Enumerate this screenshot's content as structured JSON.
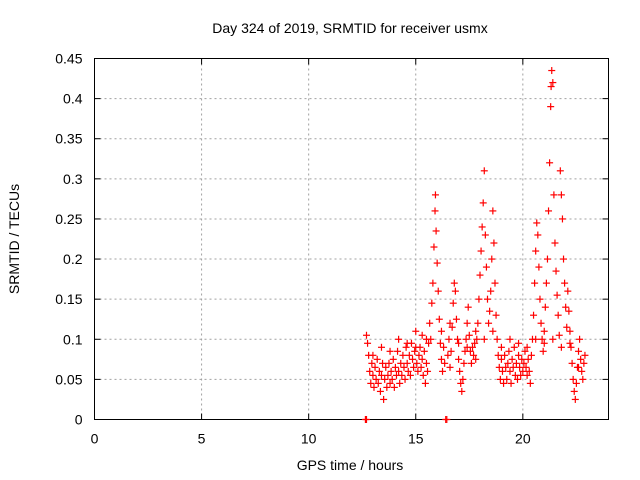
{
  "chart_data": {
    "type": "scatter",
    "title": "Day 324 of 2019, SRMTID for receiver usmx",
    "xlabel": "GPS time / hours",
    "ylabel": "SRMTID / TECUs",
    "xlim": [
      0,
      24
    ],
    "ylim": [
      0,
      0.45
    ],
    "xticks": [
      0,
      5,
      10,
      15,
      20
    ],
    "xtick_labels": [
      "0",
      "5",
      "10",
      "15",
      "20"
    ],
    "yticks": [
      0,
      0.05,
      0.1,
      0.15,
      0.2,
      0.25,
      0.3,
      0.35,
      0.4,
      0.45
    ],
    "ytick_labels": [
      "0",
      "0.05",
      "0.1",
      "0.15",
      "0.2",
      "0.25",
      "0.3",
      "0.35",
      "0.4",
      "0.45"
    ],
    "grid": true,
    "marker": "+",
    "color": "#ff0000",
    "series": [
      {
        "name": "SRMTID",
        "points": [
          [
            12.65,
            0.0
          ],
          [
            12.7,
            0.0
          ],
          [
            16.4,
            0.0
          ],
          [
            16.45,
            0.0
          ],
          [
            12.7,
            0.105
          ],
          [
            12.75,
            0.095
          ],
          [
            12.8,
            0.08
          ],
          [
            12.85,
            0.06
          ],
          [
            12.9,
            0.045
          ],
          [
            12.95,
            0.07
          ],
          [
            13.0,
            0.055
          ],
          [
            13.05,
            0.04
          ],
          [
            13.1,
            0.065
          ],
          [
            13.15,
            0.05
          ],
          [
            13.2,
            0.075
          ],
          [
            13.25,
            0.045
          ],
          [
            13.3,
            0.06
          ],
          [
            13.35,
            0.035
          ],
          [
            13.4,
            0.055
          ],
          [
            13.45,
            0.07
          ],
          [
            13.5,
            0.025
          ],
          [
            13.55,
            0.05
          ],
          [
            13.6,
            0.065
          ],
          [
            13.65,
            0.04
          ],
          [
            13.7,
            0.055
          ],
          [
            13.75,
            0.07
          ],
          [
            13.8,
            0.045
          ],
          [
            13.85,
            0.06
          ],
          [
            13.9,
            0.05
          ],
          [
            13.95,
            0.075
          ],
          [
            14.0,
            0.04
          ],
          [
            14.05,
            0.065
          ],
          [
            14.1,
            0.055
          ],
          [
            14.15,
            0.085
          ],
          [
            14.2,
            0.06
          ],
          [
            14.25,
            0.045
          ],
          [
            14.3,
            0.07
          ],
          [
            14.35,
            0.055
          ],
          [
            14.4,
            0.08
          ],
          [
            14.45,
            0.065
          ],
          [
            14.5,
            0.05
          ],
          [
            14.55,
            0.09
          ],
          [
            14.6,
            0.07
          ],
          [
            14.65,
            0.06
          ],
          [
            14.7,
            0.08
          ],
          [
            14.75,
            0.055
          ],
          [
            14.8,
            0.095
          ],
          [
            14.85,
            0.075
          ],
          [
            14.9,
            0.065
          ],
          [
            14.95,
            0.085
          ],
          [
            15.0,
            0.11
          ],
          [
            15.05,
            0.07
          ],
          [
            15.1,
            0.06
          ],
          [
            15.15,
            0.08
          ],
          [
            15.2,
            0.09
          ],
          [
            15.25,
            0.065
          ],
          [
            15.3,
            0.075
          ],
          [
            15.35,
            0.055
          ],
          [
            15.4,
            0.085
          ],
          [
            15.45,
            0.045
          ],
          [
            15.5,
            0.07
          ],
          [
            15.55,
            0.06
          ],
          [
            15.6,
            0.095
          ],
          [
            15.65,
            0.12
          ],
          [
            15.7,
            0.1
          ],
          [
            15.75,
            0.145
          ],
          [
            15.8,
            0.17
          ],
          [
            15.85,
            0.215
          ],
          [
            15.9,
            0.26
          ],
          [
            15.92,
            0.28
          ],
          [
            15.95,
            0.235
          ],
          [
            16.0,
            0.195
          ],
          [
            16.05,
            0.16
          ],
          [
            16.1,
            0.125
          ],
          [
            16.15,
            0.095
          ],
          [
            16.2,
            0.075
          ],
          [
            16.25,
            0.06
          ],
          [
            16.3,
            0.09
          ],
          [
            16.35,
            0.07
          ],
          [
            16.5,
            0.08
          ],
          [
            16.55,
            0.1
          ],
          [
            16.6,
            0.065
          ],
          [
            16.65,
            0.085
          ],
          [
            16.7,
            0.115
          ],
          [
            16.75,
            0.145
          ],
          [
            16.8,
            0.17
          ],
          [
            16.85,
            0.16
          ],
          [
            16.9,
            0.125
          ],
          [
            16.95,
            0.1
          ],
          [
            17.0,
            0.075
          ],
          [
            17.05,
            0.06
          ],
          [
            17.1,
            0.045
          ],
          [
            17.15,
            0.035
          ],
          [
            17.2,
            0.05
          ],
          [
            17.25,
            0.07
          ],
          [
            17.3,
            0.085
          ],
          [
            17.35,
            0.1
          ],
          [
            17.4,
            0.12
          ],
          [
            17.45,
            0.14
          ],
          [
            17.5,
            0.105
          ],
          [
            17.55,
            0.085
          ],
          [
            17.6,
            0.07
          ],
          [
            17.65,
            0.09
          ],
          [
            17.7,
            0.08
          ],
          [
            17.75,
            0.095
          ],
          [
            17.8,
            0.075
          ],
          [
            17.85,
            0.1
          ],
          [
            17.9,
            0.12
          ],
          [
            17.95,
            0.15
          ],
          [
            18.0,
            0.18
          ],
          [
            18.05,
            0.21
          ],
          [
            18.1,
            0.24
          ],
          [
            18.15,
            0.27
          ],
          [
            18.2,
            0.31
          ],
          [
            18.25,
            0.23
          ],
          [
            18.3,
            0.19
          ],
          [
            18.35,
            0.15
          ],
          [
            18.4,
            0.12
          ],
          [
            18.45,
            0.135
          ],
          [
            18.5,
            0.16
          ],
          [
            18.55,
            0.2
          ],
          [
            18.6,
            0.26
          ],
          [
            18.65,
            0.22
          ],
          [
            18.7,
            0.17
          ],
          [
            18.75,
            0.13
          ],
          [
            18.8,
            0.1
          ],
          [
            18.85,
            0.08
          ],
          [
            18.9,
            0.065
          ],
          [
            18.95,
            0.05
          ],
          [
            19.0,
            0.075
          ],
          [
            19.05,
            0.06
          ],
          [
            19.1,
            0.045
          ],
          [
            19.15,
            0.08
          ],
          [
            19.2,
            0.065
          ],
          [
            19.25,
            0.05
          ],
          [
            19.3,
            0.07
          ],
          [
            19.35,
            0.085
          ],
          [
            19.4,
            0.06
          ],
          [
            19.45,
            0.045
          ],
          [
            19.5,
            0.075
          ],
          [
            19.55,
            0.065
          ],
          [
            19.6,
            0.09
          ],
          [
            19.65,
            0.055
          ],
          [
            19.7,
            0.07
          ],
          [
            19.75,
            0.05
          ],
          [
            19.8,
            0.08
          ],
          [
            19.85,
            0.065
          ],
          [
            19.9,
            0.055
          ],
          [
            19.95,
            0.075
          ],
          [
            20.0,
            0.06
          ],
          [
            20.05,
            0.07
          ],
          [
            20.1,
            0.085
          ],
          [
            20.15,
            0.065
          ],
          [
            20.2,
            0.055
          ],
          [
            20.25,
            0.075
          ],
          [
            20.3,
            0.06
          ],
          [
            20.35,
            0.045
          ],
          [
            20.4,
            0.08
          ],
          [
            20.45,
            0.1
          ],
          [
            20.5,
            0.13
          ],
          [
            20.55,
            0.17
          ],
          [
            20.6,
            0.21
          ],
          [
            20.65,
            0.245
          ],
          [
            20.7,
            0.23
          ],
          [
            20.75,
            0.19
          ],
          [
            20.8,
            0.15
          ],
          [
            20.85,
            0.12
          ],
          [
            20.9,
            0.1
          ],
          [
            20.95,
            0.085
          ],
          [
            21.0,
            0.11
          ],
          [
            21.05,
            0.14
          ],
          [
            21.1,
            0.17
          ],
          [
            21.15,
            0.2
          ],
          [
            21.2,
            0.26
          ],
          [
            21.25,
            0.32
          ],
          [
            21.3,
            0.39
          ],
          [
            21.32,
            0.415
          ],
          [
            21.35,
            0.435
          ],
          [
            21.4,
            0.42
          ],
          [
            21.45,
            0.28
          ],
          [
            21.5,
            0.22
          ],
          [
            21.55,
            0.185
          ],
          [
            21.6,
            0.155
          ],
          [
            21.65,
            0.13
          ],
          [
            21.7,
            0.105
          ],
          [
            21.75,
            0.31
          ],
          [
            21.8,
            0.28
          ],
          [
            21.85,
            0.25
          ],
          [
            21.9,
            0.2
          ],
          [
            21.95,
            0.17
          ],
          [
            22.0,
            0.14
          ],
          [
            22.05,
            0.115
          ],
          [
            22.1,
            0.16
          ],
          [
            22.15,
            0.135
          ],
          [
            22.2,
            0.11
          ],
          [
            22.25,
            0.09
          ],
          [
            22.3,
            0.07
          ],
          [
            22.35,
            0.05
          ],
          [
            22.4,
            0.035
          ],
          [
            22.45,
            0.025
          ],
          [
            22.5,
            0.045
          ],
          [
            22.55,
            0.065
          ],
          [
            22.6,
            0.085
          ],
          [
            22.65,
            0.1
          ],
          [
            22.7,
            0.075
          ],
          [
            22.75,
            0.06
          ],
          [
            22.8,
            0.05
          ],
          [
            22.85,
            0.07
          ],
          [
            13.0,
            0.08
          ],
          [
            13.4,
            0.09
          ],
          [
            13.8,
            0.085
          ],
          [
            14.2,
            0.1
          ],
          [
            14.6,
            0.095
          ],
          [
            15.0,
            0.09
          ],
          [
            15.3,
            0.105
          ],
          [
            15.5,
            0.1
          ],
          [
            16.2,
            0.11
          ],
          [
            16.6,
            0.12
          ],
          [
            17.0,
            0.095
          ],
          [
            17.4,
            0.09
          ],
          [
            17.8,
            0.11
          ],
          [
            18.2,
            0.1
          ],
          [
            18.6,
            0.11
          ],
          [
            19.0,
            0.09
          ],
          [
            19.4,
            0.1
          ],
          [
            19.8,
            0.095
          ],
          [
            20.2,
            0.09
          ],
          [
            20.6,
            0.1
          ],
          [
            21.0,
            0.095
          ],
          [
            21.4,
            0.1
          ],
          [
            21.8,
            0.09
          ],
          [
            22.2,
            0.095
          ],
          [
            22.6,
            0.065
          ],
          [
            22.9,
            0.08
          ]
        ]
      }
    ]
  }
}
